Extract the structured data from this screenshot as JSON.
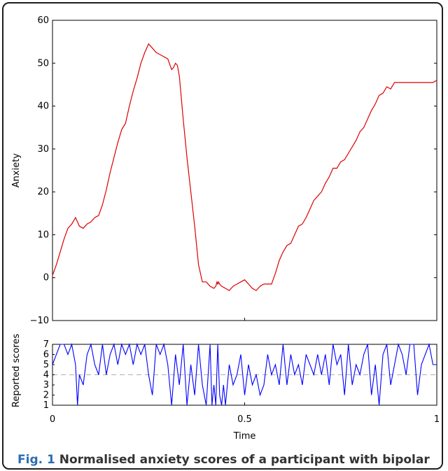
{
  "caption": {
    "fig_label": "Fig. 1",
    "text": "Normalised anxiety scores of a participant with bipolar"
  },
  "colors": {
    "anxiety_line": "#dd0000",
    "reported_line": "#0000ff",
    "threshold_line": "#b0b0b0"
  },
  "chart_data": [
    {
      "type": "line",
      "ylabel": "Anxiety",
      "xlim": [
        0,
        1
      ],
      "ylim": [
        -10,
        60
      ],
      "yticks": [
        "60",
        "50",
        "40",
        "30",
        "20",
        "10",
        "0",
        "−10"
      ],
      "grid": false,
      "series": [
        {
          "color": "#dd0000",
          "x": [
            0,
            0.01,
            0.02,
            0.03,
            0.04,
            0.05,
            0.06,
            0.065,
            0.07,
            0.08,
            0.09,
            0.1,
            0.11,
            0.12,
            0.13,
            0.14,
            0.15,
            0.16,
            0.17,
            0.18,
            0.19,
            0.2,
            0.21,
            0.22,
            0.23,
            0.24,
            0.25,
            0.26,
            0.27,
            0.28,
            0.29,
            0.3,
            0.31,
            0.315,
            0.32,
            0.325,
            0.33,
            0.34,
            0.35,
            0.36,
            0.37,
            0.38,
            0.39,
            0.4,
            0.41,
            0.42,
            0.425,
            0.428,
            0.43,
            0.432,
            0.435,
            0.44,
            0.45,
            0.46,
            0.47,
            0.48,
            0.49,
            0.5,
            0.51,
            0.52,
            0.53,
            0.54,
            0.55,
            0.56,
            0.57,
            0.58,
            0.59,
            0.6,
            0.61,
            0.62,
            0.63,
            0.64,
            0.65,
            0.66,
            0.67,
            0.68,
            0.69,
            0.7,
            0.71,
            0.72,
            0.73,
            0.74,
            0.75,
            0.76,
            0.77,
            0.78,
            0.79,
            0.8,
            0.81,
            0.82,
            0.83,
            0.84,
            0.85,
            0.86,
            0.87,
            0.88,
            0.89,
            0.9,
            0.91,
            0.92,
            0.93,
            0.94,
            0.95,
            0.96,
            0.97,
            0.98,
            0.99,
            1.0
          ],
          "values": [
            0.5,
            3,
            6,
            9,
            11.5,
            12.5,
            14,
            13,
            12,
            11.5,
            12.5,
            13,
            14,
            14.5,
            17,
            20.5,
            24.5,
            28,
            31.5,
            34.5,
            36,
            40,
            43.5,
            46.5,
            50,
            52.5,
            54.5,
            53.5,
            52.5,
            52,
            51.5,
            51,
            48.5,
            49,
            50,
            49.5,
            47,
            37,
            28,
            20,
            12,
            3,
            -1,
            -1,
            -2,
            -2.5,
            -2,
            -1,
            -1.5,
            -1,
            -1.5,
            -2,
            -2.5,
            -3,
            -2,
            -1.5,
            -1,
            -0.5,
            -1.5,
            -2.5,
            -3,
            -2,
            -1.5,
            -1.5,
            -1.5,
            1,
            4,
            6,
            7.5,
            8,
            10,
            12,
            12.5,
            14,
            16,
            18,
            19,
            20,
            22,
            23.5,
            25.5,
            25.5,
            27,
            27.5,
            29,
            30.5,
            32,
            34,
            35,
            37,
            39,
            40.5,
            42.5,
            43,
            44.5,
            44,
            45.5,
            45.5,
            45.5,
            45.5,
            45.5,
            45.5,
            45.5,
            45.5,
            45.5,
            45.5,
            45.5,
            46
          ]
        }
      ]
    },
    {
      "type": "line",
      "xlabel": "Time",
      "ylabel": "Reported scores",
      "xlim": [
        0,
        1
      ],
      "ylim": [
        1,
        7
      ],
      "xticks": [
        "0",
        "0.5",
        "1"
      ],
      "yticks": [
        "7",
        "6",
        "5",
        "4",
        "3",
        "2",
        "1"
      ],
      "threshold": 4,
      "series": [
        {
          "color": "#0000ff",
          "x": [
            0,
            0.01,
            0.02,
            0.03,
            0.04,
            0.05,
            0.06,
            0.065,
            0.07,
            0.08,
            0.09,
            0.1,
            0.11,
            0.12,
            0.13,
            0.14,
            0.15,
            0.16,
            0.17,
            0.18,
            0.19,
            0.2,
            0.21,
            0.22,
            0.23,
            0.24,
            0.25,
            0.26,
            0.27,
            0.28,
            0.29,
            0.3,
            0.31,
            0.32,
            0.33,
            0.34,
            0.35,
            0.36,
            0.37,
            0.38,
            0.39,
            0.4,
            0.41,
            0.415,
            0.42,
            0.425,
            0.43,
            0.435,
            0.44,
            0.445,
            0.45,
            0.46,
            0.47,
            0.48,
            0.49,
            0.5,
            0.51,
            0.52,
            0.53,
            0.54,
            0.55,
            0.56,
            0.57,
            0.58,
            0.59,
            0.6,
            0.61,
            0.62,
            0.63,
            0.64,
            0.65,
            0.66,
            0.67,
            0.68,
            0.69,
            0.7,
            0.71,
            0.72,
            0.73,
            0.74,
            0.75,
            0.76,
            0.77,
            0.78,
            0.79,
            0.8,
            0.81,
            0.82,
            0.83,
            0.84,
            0.85,
            0.86,
            0.87,
            0.88,
            0.89,
            0.9,
            0.91,
            0.92,
            0.93,
            0.94,
            0.95,
            0.96,
            0.97,
            0.98,
            0.99,
            1.0
          ],
          "values": [
            5,
            6,
            7,
            7,
            6,
            7,
            5,
            1,
            4,
            3,
            6,
            7,
            5,
            4,
            7,
            4,
            6,
            7,
            5,
            7,
            6,
            7,
            5,
            7,
            6,
            7,
            4,
            2,
            7,
            6,
            7,
            5,
            1,
            6,
            3,
            7,
            1,
            5,
            2,
            7,
            3,
            1,
            7,
            1,
            3,
            1,
            7,
            2,
            1,
            3,
            1,
            5,
            3,
            4,
            6,
            2,
            5,
            3,
            4,
            2,
            3,
            6,
            4,
            5,
            3,
            7,
            3,
            6,
            4,
            5,
            3,
            6,
            5,
            4,
            6,
            4,
            6,
            3,
            7,
            5,
            6,
            2,
            7,
            3,
            5,
            4,
            6,
            7,
            2,
            5,
            1,
            6,
            7,
            3,
            5,
            7,
            6,
            4,
            7,
            7,
            2,
            5,
            6,
            7,
            5,
            5
          ]
        }
      ]
    }
  ]
}
